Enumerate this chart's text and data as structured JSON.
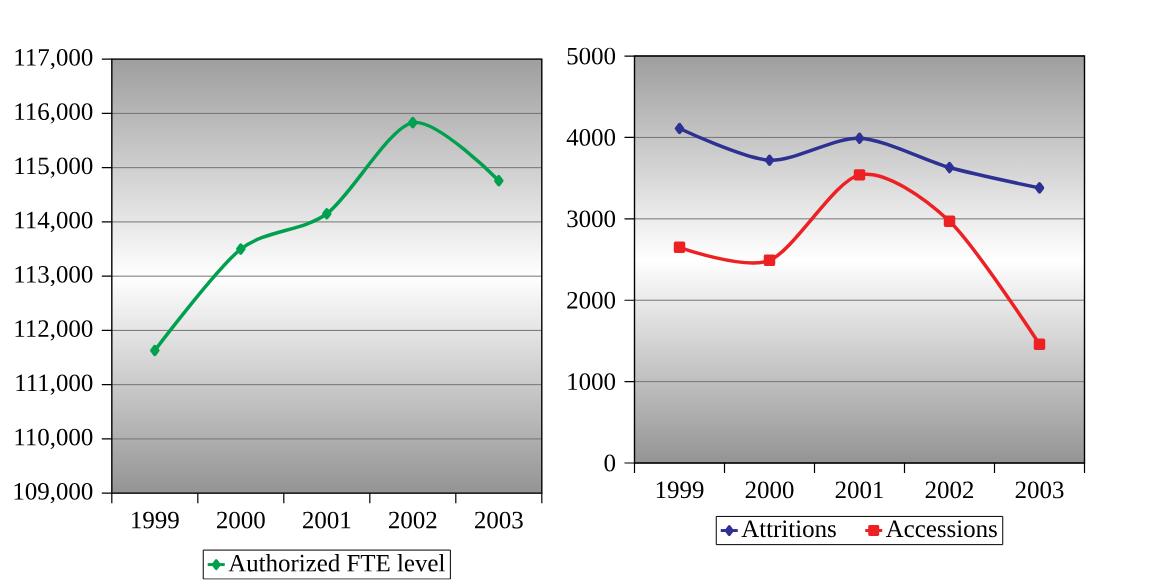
{
  "chart_data": [
    {
      "type": "line",
      "categories": [
        "1999",
        "2000",
        "2001",
        "2002",
        "2003"
      ],
      "series": [
        {
          "name": "Authorized FTE level",
          "color": "#00a04f",
          "marker": "diamond",
          "values": [
            111630,
            113500,
            114150,
            115830,
            114760
          ]
        }
      ],
      "ylim": [
        109000,
        117000
      ],
      "yticks": [
        {
          "value": 109000,
          "label": "109,000"
        },
        {
          "value": 110000,
          "label": "110,000"
        },
        {
          "value": 111000,
          "label": "111,000"
        },
        {
          "value": 112000,
          "label": "112,000"
        },
        {
          "value": 113000,
          "label": "113,000"
        },
        {
          "value": 114000,
          "label": "114,000"
        },
        {
          "value": 115000,
          "label": "115,000"
        },
        {
          "value": 116000,
          "label": "116,000"
        },
        {
          "value": 117000,
          "label": "117,000"
        }
      ],
      "grid": "y",
      "legend": "bottom"
    },
    {
      "type": "line",
      "categories": [
        "1999",
        "2000",
        "2001",
        "2002",
        "2003"
      ],
      "series": [
        {
          "name": "Attritions",
          "color": "#2e3192",
          "marker": "diamond",
          "values": [
            4110,
            3720,
            3990,
            3630,
            3380
          ]
        },
        {
          "name": "Accessions",
          "color": "#ed2024",
          "marker": "square",
          "values": [
            2650,
            2490,
            3540,
            2970,
            1460
          ]
        }
      ],
      "ylim": [
        0,
        5000
      ],
      "yticks": [
        0,
        1000,
        2000,
        3000,
        4000,
        5000
      ],
      "grid": "y",
      "legend": "bottom"
    }
  ]
}
